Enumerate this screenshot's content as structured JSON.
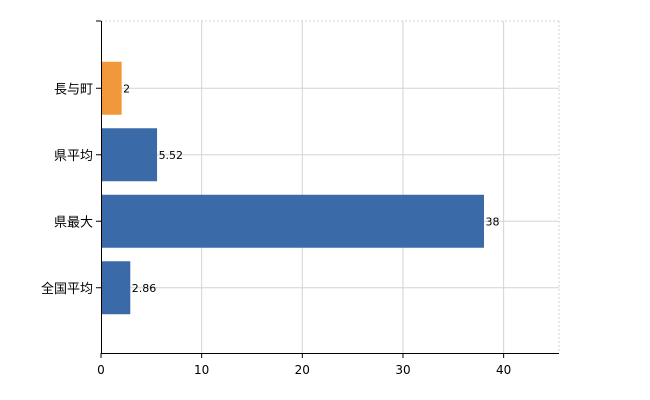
{
  "chart_data": {
    "type": "bar",
    "orientation": "horizontal",
    "categories": [
      "長与町",
      "県平均",
      "県最大",
      "全国平均"
    ],
    "values": [
      2,
      5.52,
      38,
      2.86
    ],
    "data_labels": [
      "2",
      "5.52",
      "38",
      "2.86"
    ],
    "bar_colors": [
      "#f0983a",
      "#3a6aa8",
      "#3a6aa8",
      "#3a6aa8"
    ],
    "xlim": [
      0,
      45.5
    ],
    "x_ticks": [
      0,
      10,
      20,
      30,
      40
    ],
    "x_tick_labels": [
      "0",
      "10",
      "20",
      "30",
      "40"
    ],
    "title": "",
    "xlabel": "",
    "ylabel": "",
    "grid": true,
    "legend": "none"
  }
}
